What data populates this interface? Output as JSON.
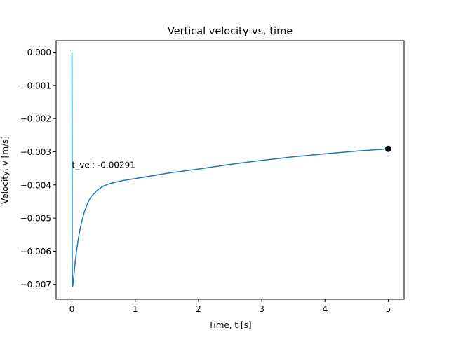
{
  "chart_data": {
    "type": "line",
    "title": "Vertical velocity vs. time",
    "xlabel": "Time, t [s]",
    "ylabel": "Velocity, v [m/s]",
    "xlim": [
      -0.25,
      5.25
    ],
    "ylim": [
      -0.00745,
      0.00035
    ],
    "xticks": [
      0,
      1,
      2,
      3,
      4,
      5
    ],
    "xtick_labels": [
      "0",
      "1",
      "2",
      "3",
      "4",
      "5"
    ],
    "yticks": [
      0.0,
      -0.001,
      -0.002,
      -0.003,
      -0.004,
      -0.005,
      -0.006,
      -0.007
    ],
    "ytick_labels": [
      "0.000",
      "−0.001",
      "−0.002",
      "−0.003",
      "−0.004",
      "−0.005",
      "−0.006",
      "−0.007"
    ],
    "grid": false,
    "series": [
      {
        "color": "#1f77b4",
        "x": [
          0.0,
          0.005,
          0.01,
          0.015,
          0.02,
          0.03,
          0.04,
          0.05,
          0.07,
          0.1,
          0.13,
          0.16,
          0.2,
          0.25,
          0.3,
          0.4,
          0.5,
          0.6,
          0.8,
          1.0,
          1.5,
          2.0,
          2.5,
          3.0,
          3.5,
          4.0,
          4.5,
          5.0
        ],
        "y": [
          0.0,
          -0.0065,
          -0.00707,
          -0.00702,
          -0.00695,
          -0.00675,
          -0.00655,
          -0.00635,
          -0.00603,
          -0.00563,
          -0.00532,
          -0.00506,
          -0.00479,
          -0.00454,
          -0.00436,
          -0.00416,
          -0.00403,
          -0.00396,
          -0.00387,
          -0.00381,
          -0.00365,
          -0.00352,
          -0.00338,
          -0.00326,
          -0.00315,
          -0.00306,
          -0.00298,
          -0.00291
        ]
      }
    ],
    "marker": {
      "x": 5.0,
      "y": -0.00291,
      "color": "#000000"
    },
    "annotation": {
      "text": "t_vel: -0.00291",
      "x": 0.0,
      "y": -0.0034
    }
  }
}
